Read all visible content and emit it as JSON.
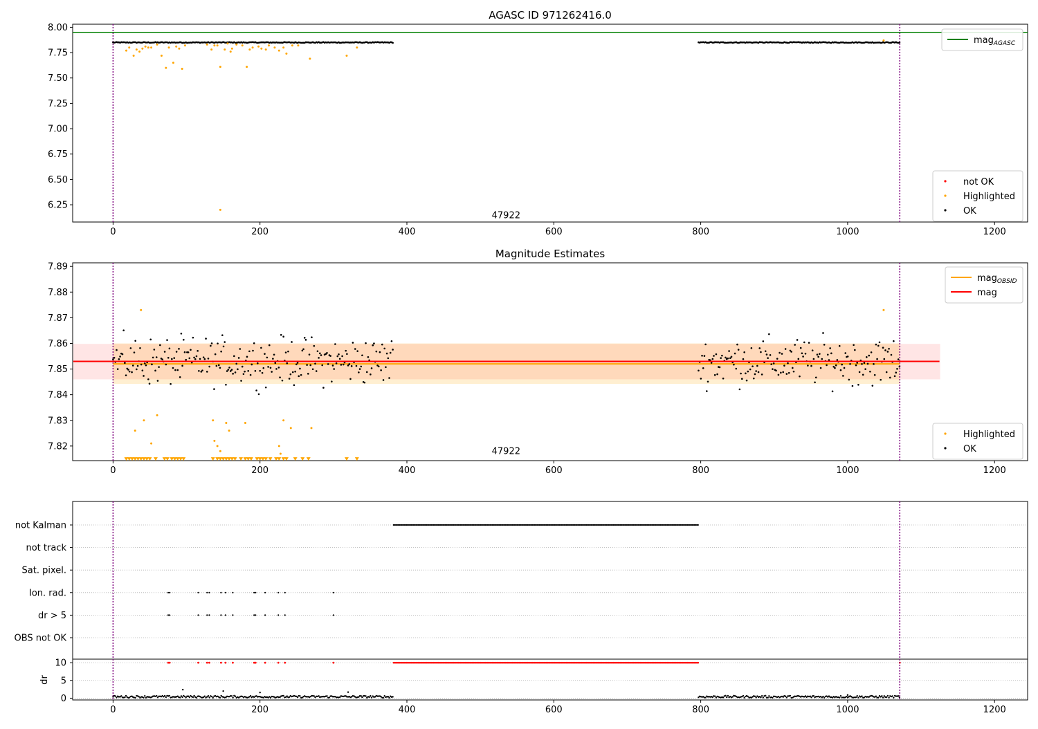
{
  "chart_data": [
    {
      "type": "scatter",
      "title": "AGASC ID 971262416.0",
      "xlim": [
        -55,
        1245
      ],
      "ylim": [
        6.08,
        8.03
      ],
      "x_ticks": [
        0,
        200,
        400,
        600,
        800,
        1000,
        1200
      ],
      "y_ticks": [
        6.25,
        6.5,
        6.75,
        7.0,
        7.25,
        7.5,
        7.75,
        8.0
      ],
      "y_tick_labels": [
        "6.25",
        "6.50",
        "6.75",
        "7.00",
        "7.25",
        "7.50",
        "7.75",
        "8.00"
      ],
      "x_tick_labels": [
        "0",
        "200",
        "400",
        "600",
        "800",
        "1000",
        "1200"
      ],
      "obsid_boundaries": [
        0,
        1071
      ],
      "obsid_label": {
        "text": "47922",
        "x": 535,
        "y": 6.11
      },
      "agasc_mag": 7.95,
      "legend_lines": {
        "placement": "top-right",
        "entries": [
          {
            "name": "mag",
            "sub": "AGASC",
            "color": "#008000"
          }
        ]
      },
      "legend_points": {
        "placement": "bottom-right",
        "entries": [
          {
            "name": "not OK",
            "color": "#ff0000"
          },
          {
            "name": "Highlighted",
            "color": "#ffa500"
          },
          {
            "name": "OK",
            "color": "#000000"
          }
        ]
      },
      "series": [
        {
          "name": "OK",
          "color": "#000000",
          "segments": [
            [
              0,
              382,
              7.85
            ],
            [
              797,
              1071,
              7.85
            ]
          ],
          "spread": 0.008
        },
        {
          "name": "Highlighted",
          "color": "#ffa500",
          "points": [
            [
              18,
              7.77
            ],
            [
              22,
              7.8
            ],
            [
              28,
              7.72
            ],
            [
              32,
              7.78
            ],
            [
              36,
              7.76
            ],
            [
              40,
              7.79
            ],
            [
              44,
              7.81
            ],
            [
              48,
              7.8
            ],
            [
              52,
              7.8
            ],
            [
              60,
              7.83
            ],
            [
              66,
              7.72
            ],
            [
              72,
              7.6
            ],
            [
              76,
              7.8
            ],
            [
              82,
              7.65
            ],
            [
              86,
              7.81
            ],
            [
              90,
              7.79
            ],
            [
              94,
              7.59
            ],
            [
              98,
              7.82
            ],
            [
              128,
              7.83
            ],
            [
              134,
              7.78
            ],
            [
              138,
              7.82
            ],
            [
              142,
              7.82
            ],
            [
              146,
              7.61
            ],
            [
              146,
              6.2
            ],
            [
              152,
              7.78
            ],
            [
              156,
              7.84
            ],
            [
              160,
              7.76
            ],
            [
              162,
              7.79
            ],
            [
              168,
              7.83
            ],
            [
              176,
              7.82
            ],
            [
              182,
              7.61
            ],
            [
              186,
              7.78
            ],
            [
              190,
              7.8
            ],
            [
              198,
              7.81
            ],
            [
              202,
              7.79
            ],
            [
              208,
              7.78
            ],
            [
              212,
              7.82
            ],
            [
              220,
              7.8
            ],
            [
              226,
              7.77
            ],
            [
              232,
              7.8
            ],
            [
              236,
              7.74
            ],
            [
              244,
              7.82
            ],
            [
              252,
              7.82
            ],
            [
              268,
              7.69
            ],
            [
              318,
              7.72
            ],
            [
              332,
              7.8
            ],
            [
              1049,
              7.87
            ]
          ]
        }
      ]
    },
    {
      "type": "scatter",
      "title": "Magnitude Estimates",
      "xlim": [
        -55,
        1245
      ],
      "ylim": [
        7.8143,
        7.8914
      ],
      "x_ticks": [
        0,
        200,
        400,
        600,
        800,
        1000,
        1200
      ],
      "y_ticks": [
        7.82,
        7.83,
        7.84,
        7.85,
        7.86,
        7.87,
        7.88,
        7.89
      ],
      "y_tick_labels": [
        "7.82",
        "7.83",
        "7.84",
        "7.85",
        "7.86",
        "7.87",
        "7.88",
        "7.89"
      ],
      "x_tick_labels": [
        "0",
        "200",
        "400",
        "600",
        "800",
        "1000",
        "1200"
      ],
      "obsid_boundaries": [
        0,
        1071
      ],
      "obsid_label": {
        "text": "47922",
        "x": 535,
        "y": 7.8166
      },
      "mag": 7.853,
      "mag_band": [
        7.846,
        7.8598
      ],
      "mag_range_x": [
        -55,
        1125
      ],
      "mag_obsid": 7.852,
      "mag_obsid_band": [
        7.8442,
        7.86
      ],
      "mag_obsid_range_x": [
        0,
        1071
      ],
      "legend_lines": {
        "placement": "top-right",
        "entries": [
          {
            "name": "mag",
            "sub": "OBSID",
            "color": "#ffa500"
          },
          {
            "name": "mag",
            "sub": "",
            "color": "#ff0000"
          }
        ]
      },
      "legend_points": {
        "placement": "bottom-right",
        "entries": [
          {
            "name": "Highlighted",
            "color": "#ffa500"
          },
          {
            "name": "OK",
            "color": "#000000"
          }
        ]
      },
      "series": [
        {
          "name": "OK",
          "color": "#000000",
          "segments": [
            [
              0,
              382,
              7.853
            ],
            [
              797,
              1071,
              7.853
            ]
          ],
          "spread": 0.009
        },
        {
          "name": "Highlighted",
          "color": "#ffa500",
          "points": [
            [
              30,
              7.826
            ],
            [
              38,
              7.873
            ],
            [
              42,
              7.83
            ],
            [
              52,
              7.821
            ],
            [
              60,
              7.832
            ],
            [
              136,
              7.83
            ],
            [
              138,
              7.822
            ],
            [
              142,
              7.82
            ],
            [
              146,
              7.818
            ],
            [
              154,
              7.829
            ],
            [
              158,
              7.826
            ],
            [
              180,
              7.829
            ],
            [
              226,
              7.82
            ],
            [
              228,
              7.817
            ],
            [
              232,
              7.83
            ],
            [
              242,
              7.827
            ],
            [
              270,
              7.827
            ],
            [
              1049,
              7.873
            ]
          ]
        },
        {
          "name": "Highlighted (below range)",
          "color": "#ffa500",
          "marker": "triangle-down",
          "y": 7.8148,
          "x": [
            18,
            22,
            26,
            30,
            34,
            38,
            42,
            46,
            50,
            58,
            70,
            74,
            80,
            84,
            88,
            92,
            96,
            136,
            142,
            146,
            150,
            154,
            158,
            162,
            166,
            174,
            180,
            184,
            188,
            196,
            200,
            204,
            208,
            214,
            222,
            226,
            232,
            236,
            248,
            258,
            266,
            318,
            332
          ]
        }
      ]
    },
    {
      "type": "scatter",
      "title": "",
      "xlim": [
        -55,
        1245
      ],
      "x_ticks": [
        0,
        200,
        400,
        600,
        800,
        1000,
        1200
      ],
      "x_tick_labels": [
        "0",
        "200",
        "400",
        "600",
        "800",
        "1000",
        "1200"
      ],
      "obsid_boundaries": [
        0,
        1071
      ],
      "flag_rows": [
        "not Kalman",
        "not track",
        "Sat. pixel.",
        "Ion. rad.",
        "dr > 5",
        "OBS not OK"
      ],
      "flags": {
        "not Kalman": {
          "ranges": [
            [
              382,
              797
            ]
          ]
        },
        "Ion. rad.": {
          "points": [
            75,
            77,
            116,
            128,
            131,
            147,
            153,
            163,
            192,
            194,
            207,
            225,
            234,
            300
          ]
        },
        "dr > 5": {
          "points": [
            75,
            77,
            116,
            128,
            131,
            147,
            153,
            163,
            192,
            194,
            207,
            225,
            234,
            300
          ]
        }
      },
      "dr_subplot": {
        "ylabel": "dr",
        "ylim": [
          -0.5,
          11
        ],
        "y_ticks": [
          0,
          5,
          10
        ],
        "y_tick_labels": [
          "0",
          "5",
          "10"
        ],
        "clip_value": 10,
        "ok_segments": [
          [
            0,
            382,
            0.4
          ],
          [
            797,
            1071,
            0.4
          ]
        ],
        "spike_points": [
          [
            95,
            2.4
          ],
          [
            150,
            2.0
          ],
          [
            200,
            1.6
          ],
          [
            320,
            1.7
          ],
          [
            1000,
            0.9
          ]
        ],
        "clipped_points": {
          "color": "#ff0000",
          "x_points": [
            75,
            77,
            116,
            128,
            131,
            147,
            153,
            163,
            192,
            194,
            207,
            225,
            234,
            300,
            1071
          ],
          "x_ranges": [
            [
              382,
              797
            ]
          ]
        }
      }
    }
  ]
}
